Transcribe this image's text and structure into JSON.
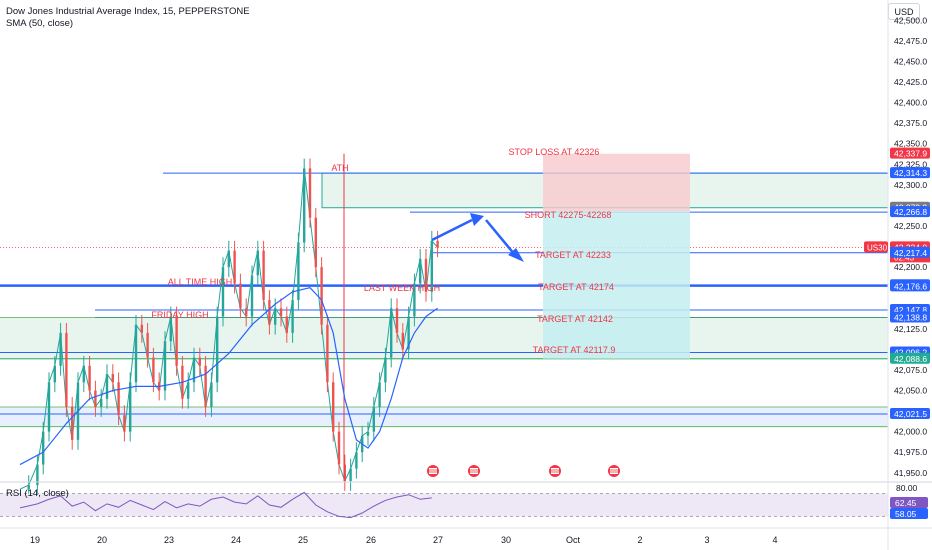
{
  "header": {
    "symbol_line": "Dow Jones Industrial Average Index, 15, PEPPERSTONE",
    "indicator_line": "SMA (50, close)",
    "currency": "USD"
  },
  "chart_data": [
    {
      "type": "line",
      "title": "Dow Jones Industrial Average Index, 15, PEPPERSTONE",
      "indicator": "SMA (50, close)",
      "y_axis": {
        "ticks": [
          "42,500.0",
          "42,475.0",
          "42,450.0",
          "42,425.0",
          "42,400.0",
          "42,375.0",
          "42,350.0",
          "42,325.0",
          "42,300.0",
          "42,275.0",
          "42,250.0",
          "42,225.0",
          "42,200.0",
          "42,175.0",
          "42,150.0",
          "42,125.0",
          "42,100.0",
          "42,075.0",
          "42,050.0",
          "42,025.0",
          "42,000.0",
          "41,975.0",
          "41,950.0"
        ],
        "range": [
          41940,
          42515
        ],
        "position": "right"
      },
      "x_axis": {
        "ticks": [
          "19",
          "20",
          "23",
          "24",
          "25",
          "26",
          "27",
          "30",
          "Oct",
          "2",
          "3",
          "4"
        ]
      },
      "price_labels": [
        {
          "text": "42,337.9",
          "value": 42337.9,
          "color": "#f23645"
        },
        {
          "text": "42,314.3",
          "value": 42314.3,
          "color": "#2962ff"
        },
        {
          "text": "42,272.2",
          "value": 42272.2,
          "color": "#787b86"
        },
        {
          "text": "42,266.8",
          "value": 42266.8,
          "color": "#2962ff"
        },
        {
          "text": "42,224.0",
          "value": 42224.0,
          "color": "#f23645",
          "extra": "02:43",
          "symbol": "US30"
        },
        {
          "text": "42,217.4",
          "value": 42217.4,
          "color": "#2962ff"
        },
        {
          "text": "42,178.0",
          "value": 42178.0,
          "color": "#2962ff"
        },
        {
          "text": "42,176.6",
          "value": 42176.6,
          "color": "#2962ff"
        },
        {
          "text": "42,147.8",
          "value": 42147.8,
          "color": "#2962ff"
        },
        {
          "text": "42,138.8",
          "value": 42138.8,
          "color": "#2962ff"
        },
        {
          "text": "42,096.2",
          "value": 42096.2,
          "color": "#2962ff"
        },
        {
          "text": "42,088.6",
          "value": 42088.6,
          "color": "#22ab94"
        },
        {
          "text": "42,021.5",
          "value": 42021.5,
          "color": "#2962ff"
        }
      ],
      "annotations": [
        {
          "text": "ATH",
          "color": "#f23645"
        },
        {
          "text": "ALL TIME HIGH",
          "color": "#f23645"
        },
        {
          "text": "FRIDAY HIGH",
          "color": "#f23645"
        },
        {
          "text": "LAST WEEK HIGH",
          "color": "#f23645"
        },
        {
          "text": "STOP LOSS AT 42326",
          "color": "#f23645"
        },
        {
          "text": "SHORT 42275-42268",
          "color": "#f23645"
        },
        {
          "text": "TARGET AT 42233",
          "color": "#f23645"
        },
        {
          "text": "TARGET AT 42174",
          "color": "#f23645"
        },
        {
          "text": "TARGET AT 42142",
          "color": "#f23645"
        },
        {
          "text": "TARGET AT 42117.9",
          "color": "#f23645"
        }
      ],
      "levels": [
        {
          "value": 42314.3,
          "color": "#2962ff"
        },
        {
          "value": 42266.8,
          "color": "#2962ff"
        },
        {
          "value": 42217.4,
          "color": "#2962ff"
        },
        {
          "value": 42178.0,
          "color": "#2962ff"
        },
        {
          "value": 42176.6,
          "color": "#2962ff"
        },
        {
          "value": 42147.8,
          "color": "#2962ff"
        },
        {
          "value": 42138.8,
          "color": "#2962ff"
        },
        {
          "value": 42096.2,
          "color": "#2962ff"
        },
        {
          "value": 42088.6,
          "color": "#22ab94"
        },
        {
          "value": 42021.5,
          "color": "#2962ff"
        }
      ],
      "zones": [
        {
          "low": 42272.2,
          "high": 42314.3,
          "kind": "supply",
          "color": "#e8f5ef"
        },
        {
          "low": 42088.6,
          "high": 42138.8,
          "kind": "range",
          "color": "#e8f5ef"
        },
        {
          "low": 42006,
          "high": 42030,
          "kind": "support",
          "color": "#e9f0fd"
        }
      ],
      "trade": {
        "side": "short",
        "entry": 42268,
        "stop": 42326,
        "target": 42117.9,
        "stop_zone_top": 42337.9,
        "target_zone_bottom": 42088.6
      },
      "price_path": [
        [
          0,
          41930
        ],
        [
          3,
          41935
        ],
        [
          6,
          41960
        ],
        [
          8,
          42000
        ],
        [
          10,
          42060
        ],
        [
          12,
          42080
        ],
        [
          14,
          42120
        ],
        [
          16,
          42030
        ],
        [
          18,
          41990
        ],
        [
          20,
          42060
        ],
        [
          22,
          42080
        ],
        [
          24,
          42050
        ],
        [
          26,
          42030
        ],
        [
          28,
          42040
        ],
        [
          30,
          42070
        ],
        [
          32,
          42060
        ],
        [
          34,
          42020
        ],
        [
          36,
          42000
        ],
        [
          38,
          42060
        ],
        [
          40,
          42130
        ],
        [
          42,
          42120
        ],
        [
          44,
          42090
        ],
        [
          46,
          42060
        ],
        [
          48,
          42050
        ],
        [
          50,
          42110
        ],
        [
          52,
          42140
        ],
        [
          54,
          42080
        ],
        [
          56,
          42040
        ],
        [
          58,
          42060
        ],
        [
          60,
          42090
        ],
        [
          62,
          42080
        ],
        [
          64,
          42030
        ],
        [
          66,
          42060
        ],
        [
          68,
          42140
        ],
        [
          70,
          42200
        ],
        [
          72,
          42220
        ],
        [
          74,
          42180
        ],
        [
          76,
          42150
        ],
        [
          78,
          42140
        ],
        [
          80,
          42190
        ],
        [
          82,
          42220
        ],
        [
          84,
          42160
        ],
        [
          86,
          42130
        ],
        [
          88,
          42150
        ],
        [
          90,
          42140
        ],
        [
          92,
          42120
        ],
        [
          94,
          42160
        ],
        [
          96,
          42230
        ],
        [
          98,
          42320
        ],
        [
          100,
          42260
        ],
        [
          102,
          42200
        ],
        [
          104,
          42130
        ],
        [
          106,
          42060
        ],
        [
          108,
          42000
        ],
        [
          110,
          41960
        ],
        [
          112,
          41940
        ],
        [
          114,
          41955
        ],
        [
          116,
          41975
        ],
        [
          118,
          41995
        ],
        [
          120,
          42000
        ],
        [
          122,
          42030
        ],
        [
          124,
          42060
        ],
        [
          126,
          42090
        ],
        [
          128,
          42150
        ],
        [
          130,
          42120
        ],
        [
          132,
          42100
        ],
        [
          134,
          42140
        ],
        [
          136,
          42180
        ],
        [
          138,
          42210
        ],
        [
          140,
          42170
        ],
        [
          142,
          42232
        ],
        [
          144,
          42224
        ]
      ],
      "sma_path": [
        [
          0,
          41960
        ],
        [
          8,
          41975
        ],
        [
          16,
          42010
        ],
        [
          24,
          42040
        ],
        [
          32,
          42050
        ],
        [
          40,
          42055
        ],
        [
          48,
          42055
        ],
        [
          56,
          42060
        ],
        [
          64,
          42070
        ],
        [
          72,
          42095
        ],
        [
          80,
          42130
        ],
        [
          88,
          42155
        ],
        [
          94,
          42170
        ],
        [
          100,
          42175
        ],
        [
          104,
          42160
        ],
        [
          108,
          42120
        ],
        [
          112,
          42040
        ],
        [
          116,
          41990
        ],
        [
          120,
          41980
        ],
        [
          124,
          42000
        ],
        [
          128,
          42040
        ],
        [
          132,
          42090
        ],
        [
          136,
          42120
        ],
        [
          140,
          42140
        ],
        [
          144,
          42150
        ]
      ],
      "events": [
        "us-flag-icon",
        "us-flag-icon",
        "us-flag-icon",
        "us-flag-icon"
      ]
    },
    {
      "type": "line",
      "title": "RSI (14, close)",
      "y_axis": {
        "ticks": [
          "80.00"
        ],
        "range": [
          15,
          85
        ]
      },
      "price_labels": [
        {
          "text": "62.45",
          "value": 62.45,
          "color": "#7e57c2"
        },
        {
          "text": "58.05",
          "value": 58.05,
          "color": "#2962ff"
        }
      ],
      "bands": [
        70,
        30
      ],
      "rsi_path": [
        [
          0,
          45
        ],
        [
          6,
          52
        ],
        [
          10,
          60
        ],
        [
          14,
          66
        ],
        [
          18,
          48
        ],
        [
          22,
          55
        ],
        [
          26,
          40
        ],
        [
          30,
          52
        ],
        [
          34,
          46
        ],
        [
          38,
          58
        ],
        [
          42,
          50
        ],
        [
          46,
          42
        ],
        [
          50,
          56
        ],
        [
          54,
          45
        ],
        [
          58,
          52
        ],
        [
          62,
          48
        ],
        [
          66,
          60
        ],
        [
          70,
          64
        ],
        [
          74,
          55
        ],
        [
          78,
          52
        ],
        [
          82,
          66
        ],
        [
          86,
          50
        ],
        [
          90,
          46
        ],
        [
          94,
          60
        ],
        [
          98,
          72
        ],
        [
          102,
          50
        ],
        [
          106,
          38
        ],
        [
          110,
          30
        ],
        [
          114,
          28
        ],
        [
          118,
          36
        ],
        [
          122,
          48
        ],
        [
          126,
          58
        ],
        [
          130,
          64
        ],
        [
          134,
          68
        ],
        [
          138,
          60
        ],
        [
          142,
          62.45
        ]
      ]
    }
  ]
}
